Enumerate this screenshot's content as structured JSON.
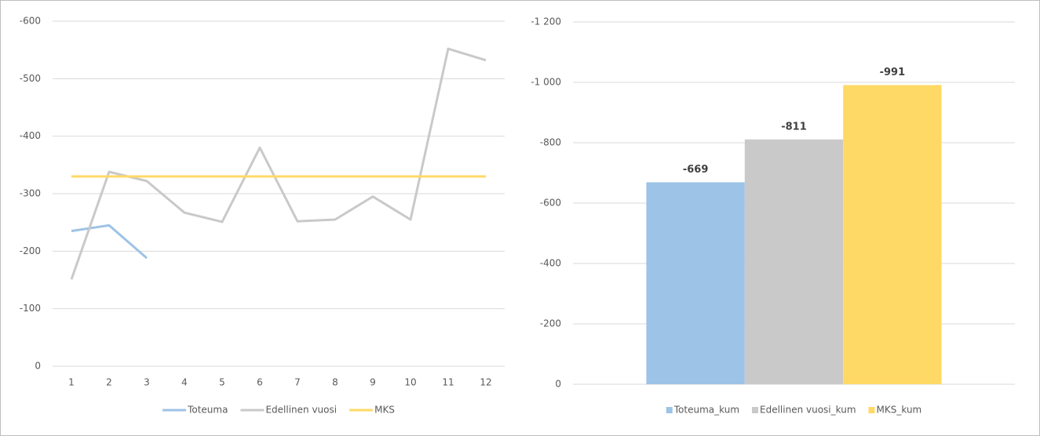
{
  "chart_data": [
    {
      "type": "line",
      "categories": [
        "1",
        "2",
        "3",
        "4",
        "5",
        "6",
        "7",
        "8",
        "9",
        "10",
        "11",
        "12"
      ],
      "series": [
        {
          "name": "Toteuma",
          "color": "#9dc3e6",
          "values": [
            -235,
            -245,
            -188,
            null,
            null,
            null,
            null,
            null,
            null,
            null,
            null,
            null
          ]
        },
        {
          "name": "Edellinen vuosi",
          "color": "#c9c9c9",
          "values": [
            -151,
            -338,
            -322,
            -267,
            -251,
            -380,
            -252,
            -255,
            -295,
            -255,
            -552,
            -532
          ]
        },
        {
          "name": "MKS",
          "color": "#ffd966",
          "values": [
            -330,
            -330,
            -330,
            -330,
            -330,
            -330,
            -330,
            -330,
            -330,
            -330,
            -330,
            -330
          ]
        }
      ],
      "ylim": [
        0,
        -600
      ],
      "yticks": [
        0,
        -100,
        -200,
        -300,
        -400,
        -500,
        -600
      ],
      "grid": true,
      "legend": "bottom"
    },
    {
      "type": "bar",
      "categories": [
        null
      ],
      "series": [
        {
          "name": "Toteuma_kum",
          "color": "#9dc3e6",
          "values": [
            -669
          ]
        },
        {
          "name": "Edellinen vuosi_kum",
          "color": "#c9c9c9",
          "values": [
            -811
          ]
        },
        {
          "name": "MKS_kum",
          "color": "#ffd966",
          "values": [
            -991
          ]
        }
      ],
      "ylim": [
        0,
        -1200
      ],
      "yticks": [
        0,
        -200,
        -400,
        -600,
        -800,
        {
          "value": -1000,
          "label": "-1 000"
        },
        {
          "value": -1200,
          "label": "-1 200"
        }
      ],
      "grid": true,
      "legend": "bottom"
    }
  ]
}
